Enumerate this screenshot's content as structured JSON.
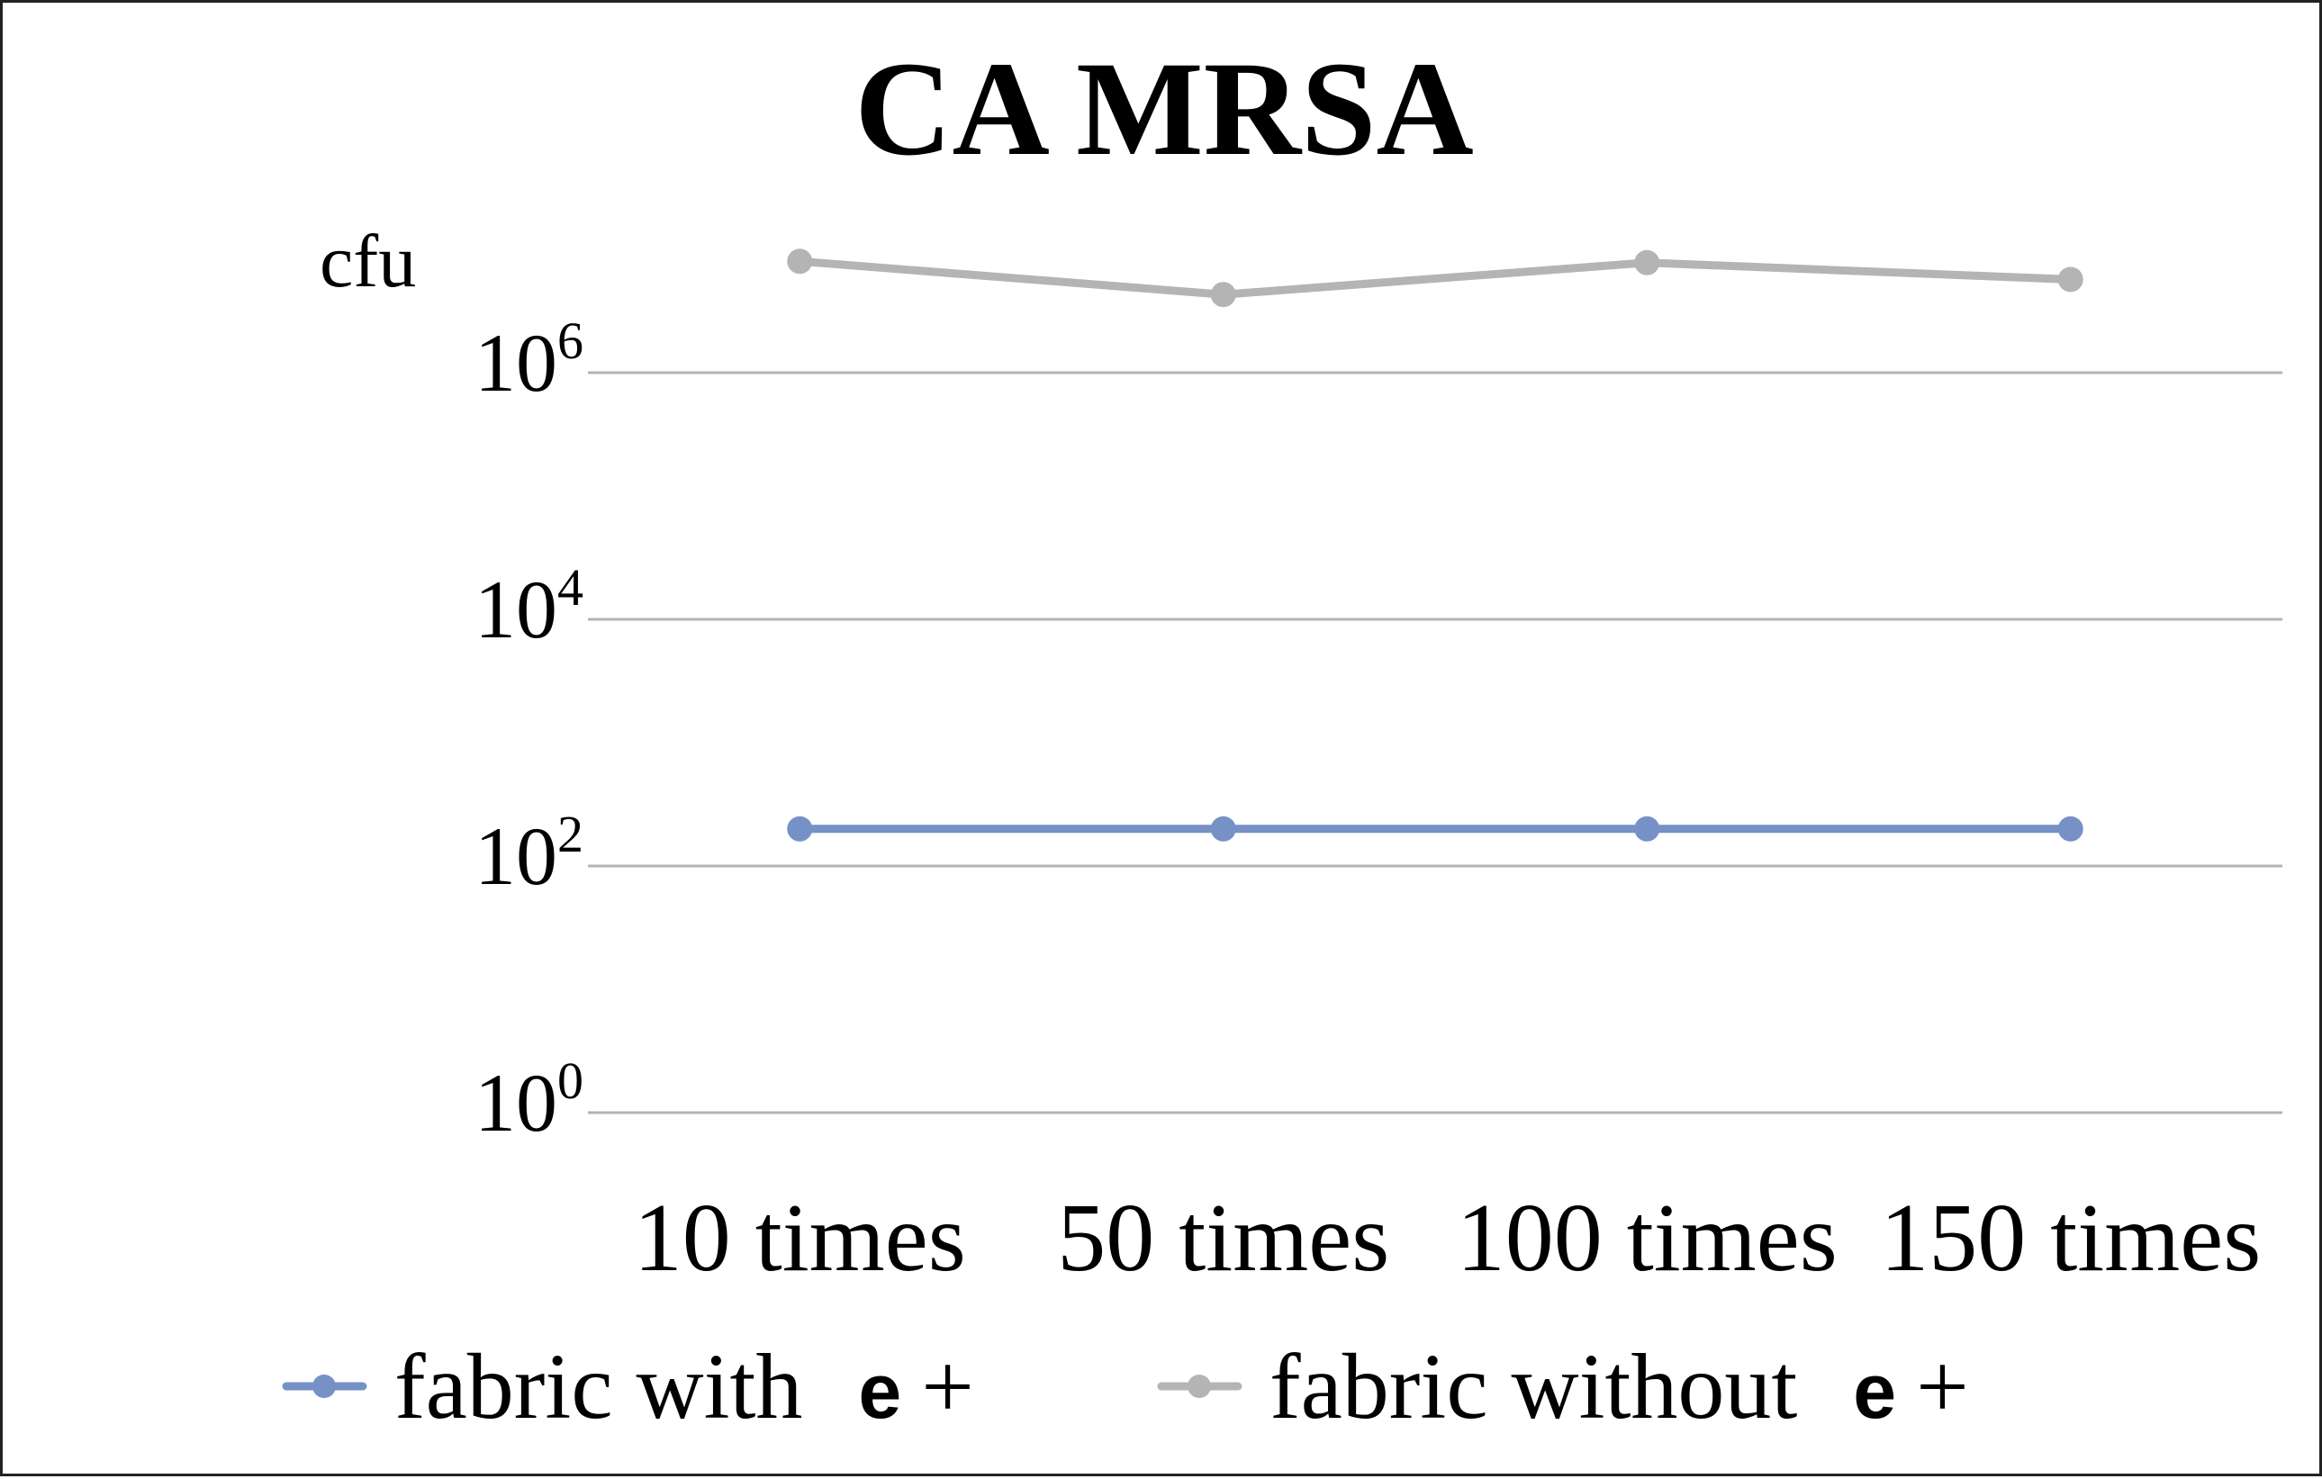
{
  "chart_data": {
    "type": "line",
    "title": "CA MRSA",
    "ylabel": "cfu",
    "yscale": "log",
    "ylim": [
      1,
      10000000
    ],
    "yticks": [
      {
        "base": "10",
        "exp": "0",
        "value": 1
      },
      {
        "base": "10",
        "exp": "2",
        "value": 100
      },
      {
        "base": "10",
        "exp": "4",
        "value": 10000
      },
      {
        "base": "10",
        "exp": "6",
        "value": 1000000
      }
    ],
    "categories": [
      "10 times",
      "50 times",
      "100 times",
      "150 times"
    ],
    "series": [
      {
        "name": "fabric with",
        "name_suffix_glyph": "e",
        "name_suffix_sign": "+",
        "color": "#7591c6",
        "values": [
          200,
          200,
          200,
          200
        ]
      },
      {
        "name": "fabric without",
        "name_suffix_glyph": "e",
        "name_suffix_sign": "+",
        "color": "#b4b4b4",
        "values": [
          8000000,
          4300000,
          7800000,
          5700000
        ]
      }
    ],
    "grid": true,
    "legend": "bottom"
  }
}
